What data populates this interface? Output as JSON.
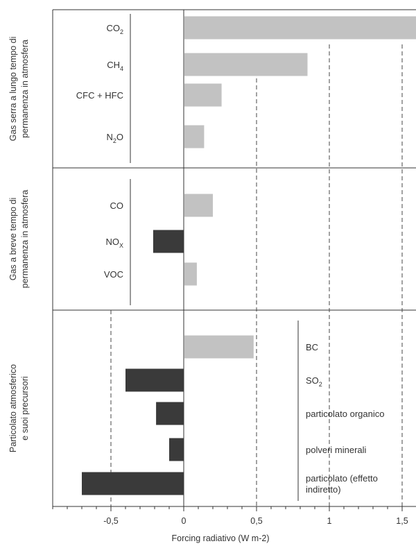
{
  "chart_data": {
    "type": "bar",
    "orientation": "horizontal",
    "xlabel": "Forcing radiativo (W m-2)",
    "xlim": [
      -0.9,
      1.6
    ],
    "x_ticks": [
      -0.5,
      0,
      0.5,
      1,
      1.5
    ],
    "x_tick_labels": [
      "-0,5",
      "0",
      "0,5",
      "1",
      "1,5"
    ],
    "dashed_reference_lines": [
      -0.5,
      0.5,
      1,
      1.5
    ],
    "colors": {
      "positive": "#c2c2c2",
      "negative": "#3a3a3a"
    },
    "groups": [
      {
        "title_lines": [
          "Gas serra a lungo tempo di",
          "permanenza in atmosfera"
        ],
        "items": [
          {
            "label": "CO",
            "sub": "2",
            "value": 1.66
          },
          {
            "label": "CH",
            "sub": "4",
            "value": 0.85
          },
          {
            "label": "CFC + HFC",
            "sub": "",
            "value": 0.26
          },
          {
            "label": "N",
            "sub": "2",
            "tail": "O",
            "value": 0.14
          }
        ]
      },
      {
        "title_lines": [
          "Gas a breve tempo di",
          "permanenza in atmosfera"
        ],
        "items": [
          {
            "label": "CO",
            "sub": "",
            "value": 0.2
          },
          {
            "label": "NO",
            "sub": "X",
            "value": -0.21
          },
          {
            "label": "VOC",
            "sub": "",
            "value": 0.09
          }
        ]
      },
      {
        "title_lines": [
          "Particolato atmosferico",
          "e suoi precursori"
        ],
        "items": [
          {
            "label": "BC",
            "sub": "",
            "value": 0.48
          },
          {
            "label": "SO",
            "sub": "2",
            "value": -0.4
          },
          {
            "label": "particolato organico",
            "sub": "",
            "value": -0.19
          },
          {
            "label": "polveri minerali",
            "sub": "",
            "value": -0.1
          },
          {
            "label": "particolato (effetto",
            "label2": "indiretto)",
            "sub": "",
            "value": -0.7
          }
        ]
      }
    ]
  }
}
